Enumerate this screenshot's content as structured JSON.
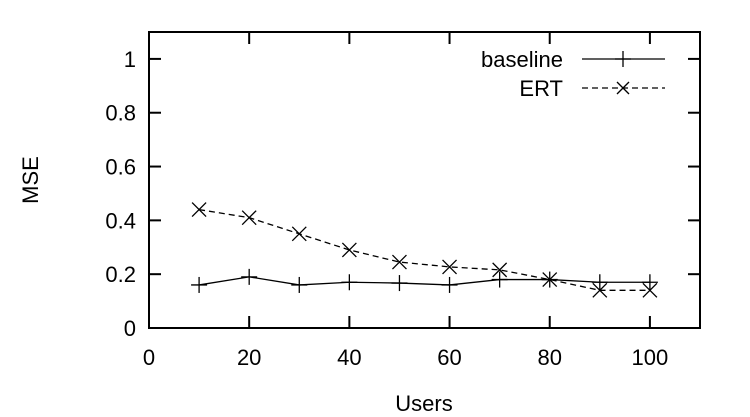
{
  "chart_data": {
    "type": "line",
    "title": "",
    "xlabel": "Users",
    "ylabel": "MSE",
    "xlim": [
      0,
      110
    ],
    "ylim": [
      0,
      1.1
    ],
    "xticks": [
      0,
      20,
      40,
      60,
      80,
      100
    ],
    "yticks": [
      0,
      0.2,
      0.4,
      0.6,
      0.8,
      1
    ],
    "xtick_labels": [
      "0",
      "20",
      "40",
      "60",
      "80",
      "100"
    ],
    "ytick_labels": [
      "0",
      "0.2",
      "0.4",
      "0.6",
      "0.8",
      "1"
    ],
    "grid": false,
    "legend_position": "top-right",
    "x": [
      10,
      20,
      30,
      40,
      50,
      60,
      70,
      80,
      90,
      100
    ],
    "series": [
      {
        "name": "baseline",
        "values": [
          0.16,
          0.19,
          0.16,
          0.17,
          0.167,
          0.16,
          0.18,
          0.18,
          0.17,
          0.17
        ],
        "line_style": "solid",
        "marker": "plus",
        "color": "#000000"
      },
      {
        "name": "ERT",
        "values": [
          0.44,
          0.41,
          0.35,
          0.29,
          0.245,
          0.227,
          0.216,
          0.18,
          0.14,
          0.14
        ],
        "line_style": "dashed",
        "marker": "cross",
        "color": "#000000"
      }
    ]
  }
}
